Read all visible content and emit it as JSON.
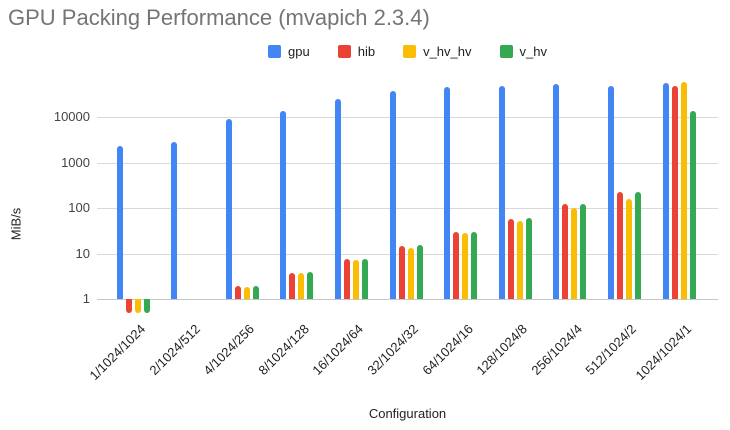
{
  "title": "GPU Packing Performance (mvapich 2.3.4)",
  "chart_data": {
    "type": "bar",
    "title": "GPU Packing Performance (mvapich 2.3.4)",
    "xlabel": "Configuration",
    "ylabel": "MiB/s",
    "y_scale": "log",
    "y_ticks": [
      1,
      10,
      100,
      1000,
      10000
    ],
    "ylim": [
      0.45,
      84000
    ],
    "bar_baseline": 1,
    "grid": true,
    "legend_position": "top",
    "categories": [
      "1/1024/1024",
      "2/1024/512",
      "4/1024/256",
      "8/1024/128",
      "16/1024/64",
      "32/1024/32",
      "64/1024/16",
      "128/1024/8",
      "256/1024/4",
      "512/1024/2",
      "1024/1024/1"
    ],
    "series": [
      {
        "name": "gpu",
        "color": "#4285F4",
        "values": [
          2300,
          2800,
          9000,
          13500,
          25000,
          38000,
          45000,
          47000,
          52000,
          49000,
          57000
        ]
      },
      {
        "name": "hib",
        "color": "#EA4335",
        "values": [
          0.5,
          1,
          1.9,
          3.8,
          7.4,
          14.5,
          29,
          58,
          120,
          230,
          48000
        ]
      },
      {
        "name": "v_hv_hv",
        "color": "#FBBC04",
        "values": [
          0.5,
          1,
          1.85,
          3.75,
          7.2,
          13.5,
          28,
          52,
          98,
          160,
          58000
        ]
      },
      {
        "name": "v_hv",
        "color": "#34A853",
        "values": [
          0.5,
          1,
          1.95,
          3.9,
          7.5,
          15,
          30,
          59,
          121,
          220,
          13800
        ]
      }
    ]
  },
  "colors": {
    "background": "#ffffff",
    "title_text": "#757575",
    "axis_text": "#222222",
    "tick_text": "#444444",
    "gridline": "#d9d9d9"
  }
}
